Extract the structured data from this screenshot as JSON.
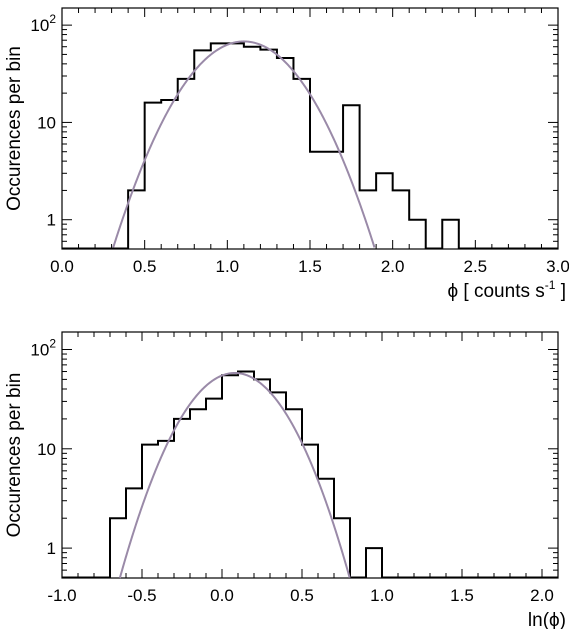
{
  "chart_data": [
    {
      "type": "histogram",
      "xlabel": {
        "symbol": "ϕ",
        "text": " [ counts s",
        "sup": "-1",
        "end": " ]"
      },
      "ylabel": "Occurences per bin",
      "xlim": [
        0.0,
        3.0
      ],
      "ylim": [
        0.5,
        150
      ],
      "yscale": "log",
      "xticks": [
        "0.0",
        "0.5",
        "1.0",
        "1.5",
        "2.0",
        "2.5",
        "3.0"
      ],
      "yticks": [
        "1",
        "10",
        "10²"
      ],
      "bin_width": 0.1,
      "bins": [
        {
          "x": 0.4,
          "y": 2
        },
        {
          "x": 0.5,
          "y": 16
        },
        {
          "x": 0.6,
          "y": 17
        },
        {
          "x": 0.7,
          "y": 28
        },
        {
          "x": 0.8,
          "y": 55
        },
        {
          "x": 0.9,
          "y": 65
        },
        {
          "x": 1.0,
          "y": 65
        },
        {
          "x": 1.1,
          "y": 60
        },
        {
          "x": 1.2,
          "y": 56
        },
        {
          "x": 1.3,
          "y": 46
        },
        {
          "x": 1.4,
          "y": 28
        },
        {
          "x": 1.5,
          "y": 5
        },
        {
          "x": 1.6,
          "y": 5
        },
        {
          "x": 1.7,
          "y": 15
        },
        {
          "x": 1.8,
          "y": 2
        },
        {
          "x": 1.9,
          "y": 3
        },
        {
          "x": 2.0,
          "y": 2
        },
        {
          "x": 2.1,
          "y": 1
        },
        {
          "x": 2.3,
          "y": 1
        }
      ],
      "fit": {
        "type": "gaussian",
        "amplitude": 68,
        "mean": 1.1,
        "sigma": 0.253,
        "color": "#9a8aa8"
      },
      "grid": false
    },
    {
      "type": "histogram",
      "xlabel": {
        "text": "ln(ϕ)"
      },
      "ylabel": "Occurences per bin",
      "xlim": [
        -1.0,
        2.1
      ],
      "ylim": [
        0.5,
        150
      ],
      "yscale": "log",
      "xticks": [
        "-1.0",
        "-0.5",
        "0.0",
        "0.5",
        "1.0",
        "1.5",
        "2.0"
      ],
      "yticks": [
        "1",
        "10",
        "10²"
      ],
      "bin_width": 0.1,
      "bins": [
        {
          "x": -0.7,
          "y": 2
        },
        {
          "x": -0.6,
          "y": 4
        },
        {
          "x": -0.5,
          "y": 11
        },
        {
          "x": -0.4,
          "y": 12
        },
        {
          "x": -0.3,
          "y": 20
        },
        {
          "x": -0.2,
          "y": 25
        },
        {
          "x": -0.1,
          "y": 32
        },
        {
          "x": 0.0,
          "y": 55
        },
        {
          "x": 0.1,
          "y": 60
        },
        {
          "x": 0.2,
          "y": 50
        },
        {
          "x": 0.3,
          "y": 37
        },
        {
          "x": 0.4,
          "y": 25
        },
        {
          "x": 0.5,
          "y": 11
        },
        {
          "x": 0.6,
          "y": 5
        },
        {
          "x": 0.7,
          "y": 2
        },
        {
          "x": 0.9,
          "y": 1
        }
      ],
      "fit": {
        "type": "gaussian",
        "amplitude": 58,
        "mean": 0.08,
        "sigma": 0.233,
        "color": "#9a8aa8"
      },
      "grid": false
    }
  ]
}
